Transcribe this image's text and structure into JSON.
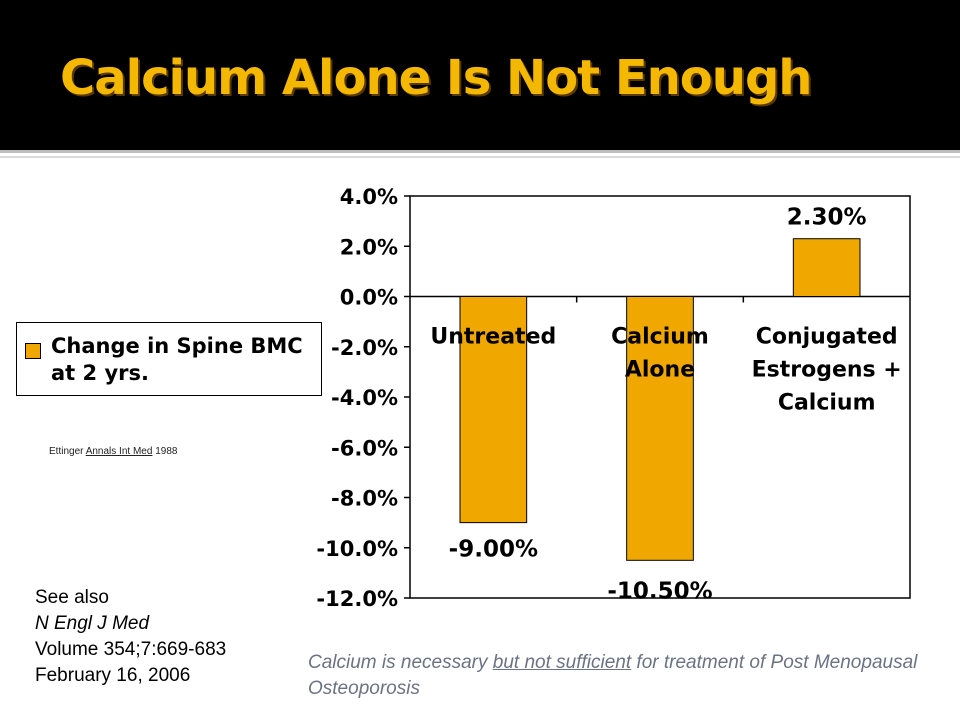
{
  "slide": {
    "title": "Calcium Alone Is Not Enough"
  },
  "legend": {
    "label": "Change in Spine BMC at 2 yrs."
  },
  "citation": {
    "author": "Ettinger ",
    "journal": "Annals Int Med",
    "year": " 1988"
  },
  "see_also": {
    "line1": "See also",
    "line2": "N Engl J Med",
    "line3": "Volume 354;7:669-683",
    "line4": "February 16, 2006"
  },
  "footnote": {
    "before": "Calcium is necessary ",
    "underlined": "but not sufficient",
    "after": " for treatment of Post Menopausal Osteoporosis"
  },
  "colors": {
    "bar": "#f0a800",
    "title": "#f5b800",
    "title_bar": "#000000",
    "footnote": "#6b7282"
  },
  "chart_data": {
    "type": "bar",
    "title": "",
    "xlabel": "",
    "ylabel": "",
    "ylim": [
      -12.0,
      4.0
    ],
    "y_ticks": [
      "4.0%",
      "2.0%",
      "0.0%",
      "-2.0%",
      "-4.0%",
      "-6.0%",
      "-8.0%",
      "-10.0%",
      "-12.0%"
    ],
    "y_tick_values": [
      4,
      2,
      0,
      -2,
      -4,
      -6,
      -8,
      -10,
      -12
    ],
    "grid": false,
    "legend_position": "left",
    "categories": [
      [
        "Untreated"
      ],
      [
        "Calcium",
        "Alone"
      ],
      [
        "Conjugated",
        "Estrogens +",
        "Calcium"
      ]
    ],
    "series": [
      {
        "name": "Change in Spine BMC at 2 yrs.",
        "values": [
          -9.0,
          -10.5,
          2.3
        ],
        "data_labels": [
          "-9.00%",
          "-10.50%",
          "2.30%"
        ]
      }
    ]
  }
}
